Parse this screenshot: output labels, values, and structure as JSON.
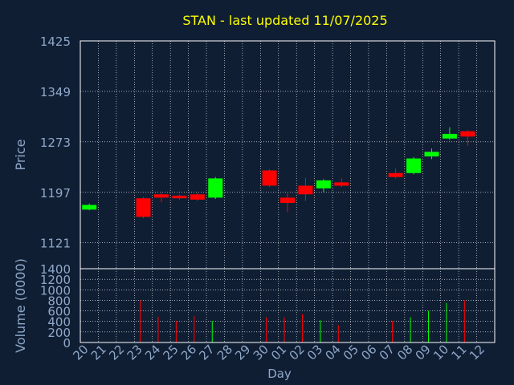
{
  "colors": {
    "background": "#0f1e33",
    "title": "#ffff00",
    "axis_text": "#8fa7c8",
    "axis_line": "#ffffff",
    "grid": "#ffffff",
    "up": "#00ff00",
    "down": "#ff0000"
  },
  "chart_data": [
    {
      "type": "candlestick",
      "title": "STAN - last updated 11/07/2025",
      "ylabel": "Price",
      "ylim": [
        1082,
        1425
      ],
      "yticks": [
        1121,
        1197,
        1273,
        1349,
        1425
      ],
      "x_tick_labels": [
        "20",
        "21",
        "22",
        "23",
        "24",
        "25",
        "26",
        "27",
        "28",
        "29",
        "30",
        "01",
        "02",
        "03",
        "04",
        "05",
        "06",
        "07",
        "08",
        "09",
        "10",
        "11",
        "12"
      ],
      "grid": true,
      "candles": [
        {
          "day": "20",
          "x": 0,
          "open": 1171,
          "close": 1178,
          "high": 1180,
          "low": 1170
        },
        {
          "day": "23",
          "x": 3,
          "open": 1188,
          "close": 1160,
          "high": 1190,
          "low": 1158
        },
        {
          "day": "24",
          "x": 4,
          "open": 1194,
          "close": 1189,
          "high": 1196,
          "low": 1182
        },
        {
          "day": "25",
          "x": 5,
          "open": 1192,
          "close": 1188,
          "high": 1194,
          "low": 1186
        },
        {
          "day": "26",
          "x": 6,
          "open": 1194,
          "close": 1186,
          "high": 1196,
          "low": 1184
        },
        {
          "day": "27",
          "x": 7,
          "open": 1189,
          "close": 1218,
          "high": 1220,
          "low": 1187
        },
        {
          "day": "30",
          "x": 10,
          "open": 1230,
          "close": 1207,
          "high": 1232,
          "low": 1205
        },
        {
          "day": "01",
          "x": 11,
          "open": 1189,
          "close": 1181,
          "high": 1196,
          "low": 1167
        },
        {
          "day": "02",
          "x": 12,
          "open": 1207,
          "close": 1194,
          "high": 1219,
          "low": 1184
        },
        {
          "day": "03",
          "x": 13,
          "open": 1203,
          "close": 1215,
          "high": 1217,
          "low": 1197
        },
        {
          "day": "04",
          "x": 14,
          "open": 1212,
          "close": 1207,
          "high": 1218,
          "low": 1205
        },
        {
          "day": "07",
          "x": 17,
          "open": 1226,
          "close": 1220,
          "high": 1233,
          "low": 1218
        },
        {
          "day": "08",
          "x": 18,
          "open": 1226,
          "close": 1248,
          "high": 1250,
          "low": 1224
        },
        {
          "day": "09",
          "x": 19,
          "open": 1251,
          "close": 1258,
          "high": 1263,
          "low": 1247
        },
        {
          "day": "10",
          "x": 20,
          "open": 1278,
          "close": 1285,
          "high": 1295,
          "low": 1276
        },
        {
          "day": "11",
          "x": 21,
          "open": 1289,
          "close": 1281,
          "high": 1291,
          "low": 1267
        }
      ]
    },
    {
      "type": "bar",
      "xlabel": "Day",
      "ylabel": "Volume (0000)",
      "ylim": [
        0,
        1400
      ],
      "yticks": [
        0,
        200,
        400,
        600,
        800,
        1000,
        1200,
        1400
      ],
      "grid": true,
      "bars": [
        {
          "x": 3,
          "value": 800,
          "direction": "down"
        },
        {
          "x": 4,
          "value": 490,
          "direction": "down"
        },
        {
          "x": 5,
          "value": 410,
          "direction": "down"
        },
        {
          "x": 6,
          "value": 500,
          "direction": "down"
        },
        {
          "x": 7,
          "value": 410,
          "direction": "up"
        },
        {
          "x": 10,
          "value": 480,
          "direction": "down"
        },
        {
          "x": 11,
          "value": 480,
          "direction": "down"
        },
        {
          "x": 12,
          "value": 540,
          "direction": "down"
        },
        {
          "x": 13,
          "value": 420,
          "direction": "up"
        },
        {
          "x": 14,
          "value": 330,
          "direction": "down"
        },
        {
          "x": 17,
          "value": 410,
          "direction": "down"
        },
        {
          "x": 18,
          "value": 480,
          "direction": "up"
        },
        {
          "x": 19,
          "value": 600,
          "direction": "up"
        },
        {
          "x": 20,
          "value": 750,
          "direction": "up"
        },
        {
          "x": 21,
          "value": 800,
          "direction": "down"
        }
      ]
    }
  ]
}
